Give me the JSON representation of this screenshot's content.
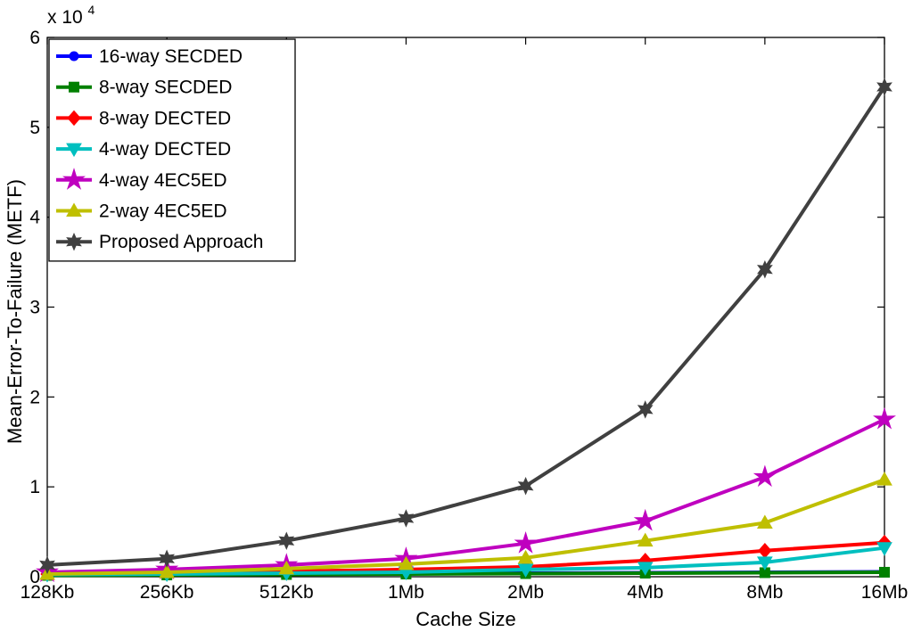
{
  "chart_data": {
    "type": "line",
    "title": "",
    "xlabel": "Cache Size",
    "ylabel": "Mean-Error-To-Failure (METF)",
    "categories": [
      "128Kb",
      "256Kb",
      "512Kb",
      "1Mb",
      "2Mb",
      "4Mb",
      "8Mb",
      "16Mb"
    ],
    "ylim": [
      0,
      60000
    ],
    "yticks": [
      0,
      10000,
      20000,
      30000,
      40000,
      50000,
      60000
    ],
    "ytick_labels": [
      "0",
      "1",
      "2",
      "3",
      "4",
      "5",
      "6"
    ],
    "y_multiplier_base": "x 10",
    "y_multiplier_exp": "4",
    "grid": false,
    "legend_position": "top-left",
    "series": [
      {
        "name": "16-way SECDED",
        "color": "#0000ff",
        "marker": "circle",
        "values": [
          200,
          250,
          300,
          350,
          400,
          450,
          500,
          550
        ]
      },
      {
        "name": "8-way SECDED",
        "color": "#008000",
        "marker": "square",
        "values": [
          150,
          200,
          250,
          300,
          350,
          400,
          450,
          500
        ]
      },
      {
        "name": "8-way DECTED",
        "color": "#ff0000",
        "marker": "diamond",
        "values": [
          300,
          400,
          600,
          800,
          1100,
          1800,
          2900,
          3800
        ]
      },
      {
        "name": "4-way DECTED",
        "color": "#00bfbf",
        "marker": "triangle-down",
        "values": [
          250,
          300,
          400,
          500,
          800,
          1000,
          1600,
          3200
        ]
      },
      {
        "name": "4-way 4EC5ED",
        "color": "#bf00bf",
        "marker": "star",
        "values": [
          500,
          800,
          1300,
          2000,
          3700,
          6200,
          11100,
          17500
        ]
      },
      {
        "name": "2-way 4EC5ED",
        "color": "#bfbf00",
        "marker": "triangle-up",
        "values": [
          300,
          500,
          900,
          1400,
          2100,
          4000,
          6000,
          10800
        ]
      },
      {
        "name": "Proposed Approach",
        "color": "#404040",
        "marker": "hexagram",
        "values": [
          1300,
          2000,
          4000,
          6500,
          10100,
          18600,
          34200,
          54500
        ]
      }
    ]
  }
}
